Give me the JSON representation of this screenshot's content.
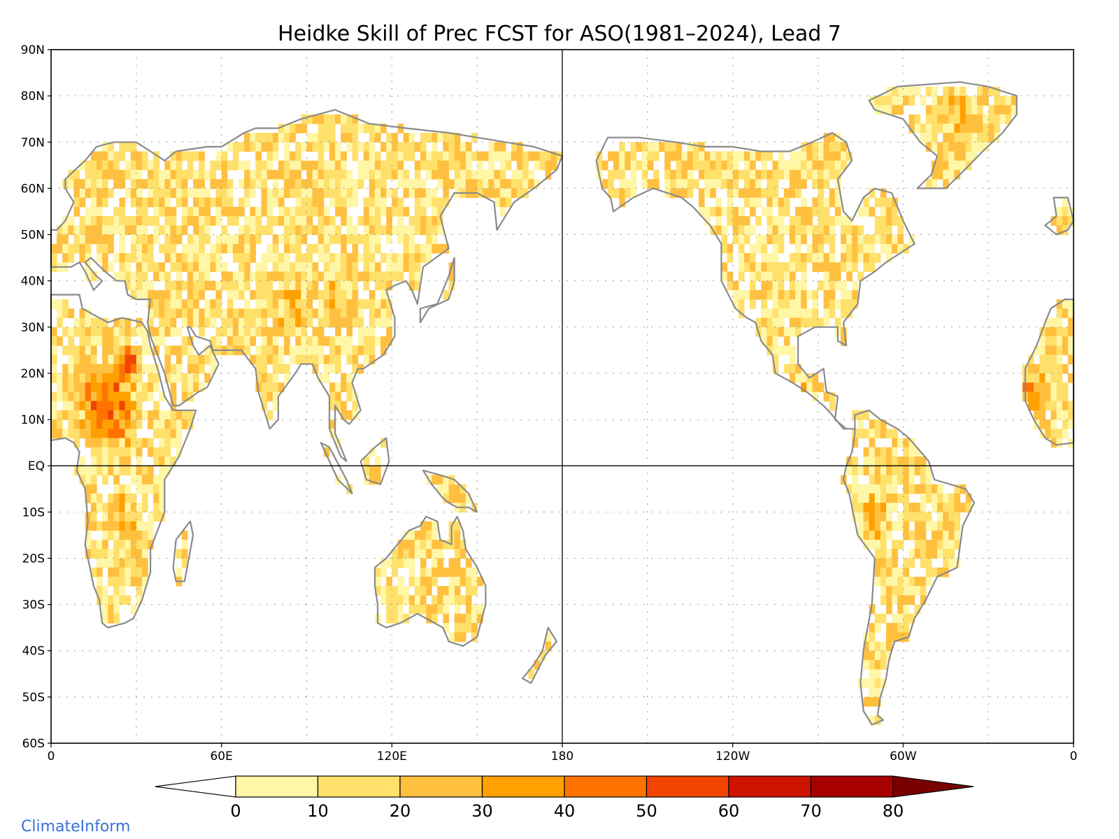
{
  "title": "Heidke Skill of Prec FCST for ASO(1981–2024), Lead 7",
  "credit": "ClimateInform",
  "map": {
    "lat_labels": [
      "90N",
      "80N",
      "70N",
      "60N",
      "50N",
      "40N",
      "30N",
      "20N",
      "10N",
      "EQ",
      "10S",
      "20S",
      "30S",
      "40S",
      "50S",
      "60S"
    ],
    "lon_labels": [
      "0",
      "60E",
      "120E",
      "180",
      "120W",
      "60W",
      "0"
    ],
    "land_color": "#ffffff",
    "coast_color": "#8a8a8a",
    "lake_color": "#000000",
    "reference_lines": [
      "Equator",
      "180"
    ]
  },
  "colorbar": {
    "tick_labels": [
      "0",
      "10",
      "20",
      "30",
      "40",
      "50",
      "60",
      "70",
      "80"
    ],
    "colors": [
      "#ffffff",
      "#fff6a6",
      "#ffe06a",
      "#ffc040",
      "#ffa000",
      "#ff7200",
      "#f04400",
      "#cc1400",
      "#a80000",
      "#7a0000"
    ],
    "extend": "both"
  }
}
